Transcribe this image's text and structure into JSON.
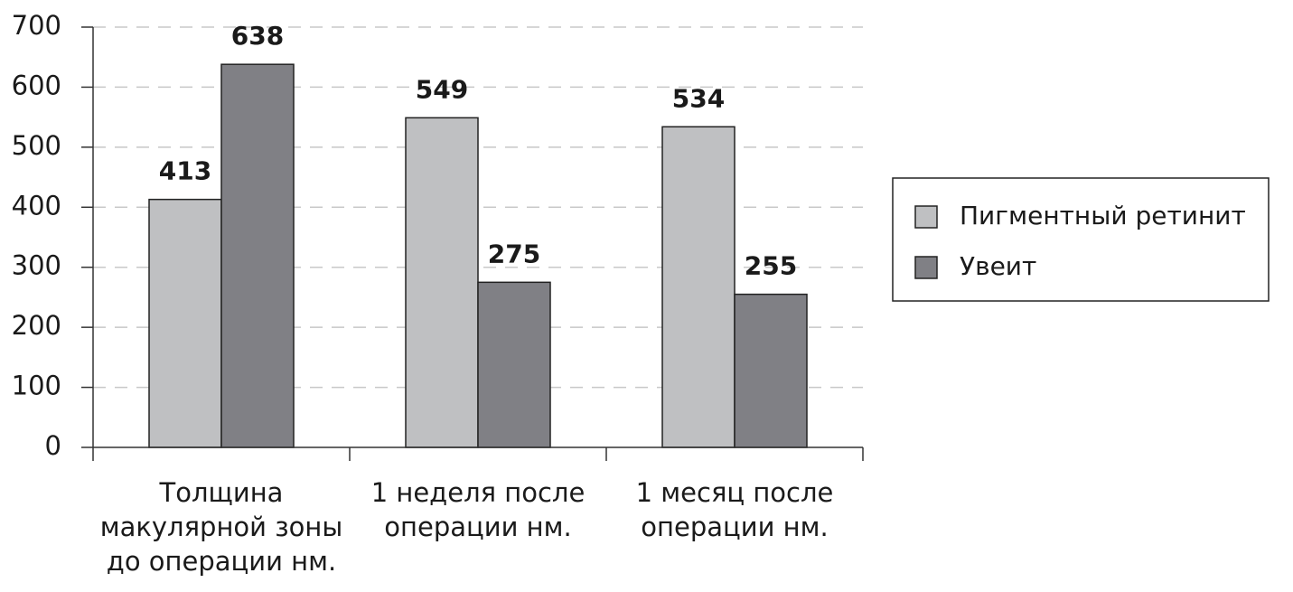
{
  "chart_data": {
    "type": "bar",
    "categories": [
      "Толщина макулярной зоны до операции нм.",
      "1 неделя после операции нм.",
      "1 месяц после операции нм."
    ],
    "series": [
      {
        "name": "Пигментный ретинит",
        "color": "#bfc0c2",
        "values": [
          413,
          549,
          534
        ]
      },
      {
        "name": "Увеит",
        "color": "#808085",
        "values": [
          638,
          275,
          255
        ]
      }
    ],
    "ylim": [
      0,
      700
    ],
    "yticks": [
      0,
      100,
      200,
      300,
      400,
      500,
      600,
      700
    ],
    "grid": true,
    "legend": "right"
  }
}
